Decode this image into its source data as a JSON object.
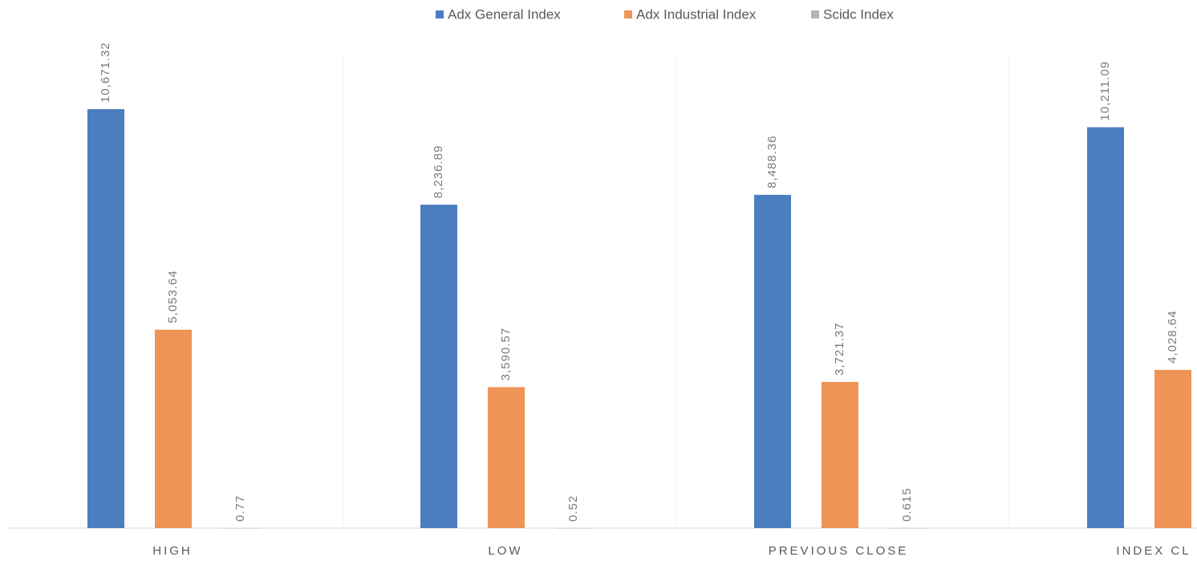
{
  "chart_data": {
    "type": "bar",
    "categories": [
      "HIGH",
      "LOW",
      "PREVIOUS CLOSE",
      "INDEX CL"
    ],
    "series": [
      {
        "name": "Adx General Index",
        "color": "#4a7ebf",
        "values": [
          10671.32,
          8236.89,
          8488.36,
          10211.09
        ],
        "labels": [
          "10,671.32",
          "8,236.89",
          "8,488.36",
          "10,211.09"
        ]
      },
      {
        "name": "Adx Industrial Index",
        "color": "#ef9456",
        "values": [
          5053.64,
          3590.57,
          3721.37,
          4028.64
        ],
        "labels": [
          "5,053.64",
          "3,590.57",
          "3,721.37",
          "4,028.64"
        ]
      },
      {
        "name": "Scidc Index",
        "color": "#b4b4b4",
        "values": [
          0.77,
          0.52,
          0.615,
          null
        ],
        "labels": [
          "0.77",
          "0.52",
          "0.615",
          ""
        ]
      }
    ],
    "legend": "top-center",
    "grid": false,
    "ylim": [
      0,
      12000
    ],
    "title": "",
    "xlabel": "",
    "ylabel": ""
  }
}
